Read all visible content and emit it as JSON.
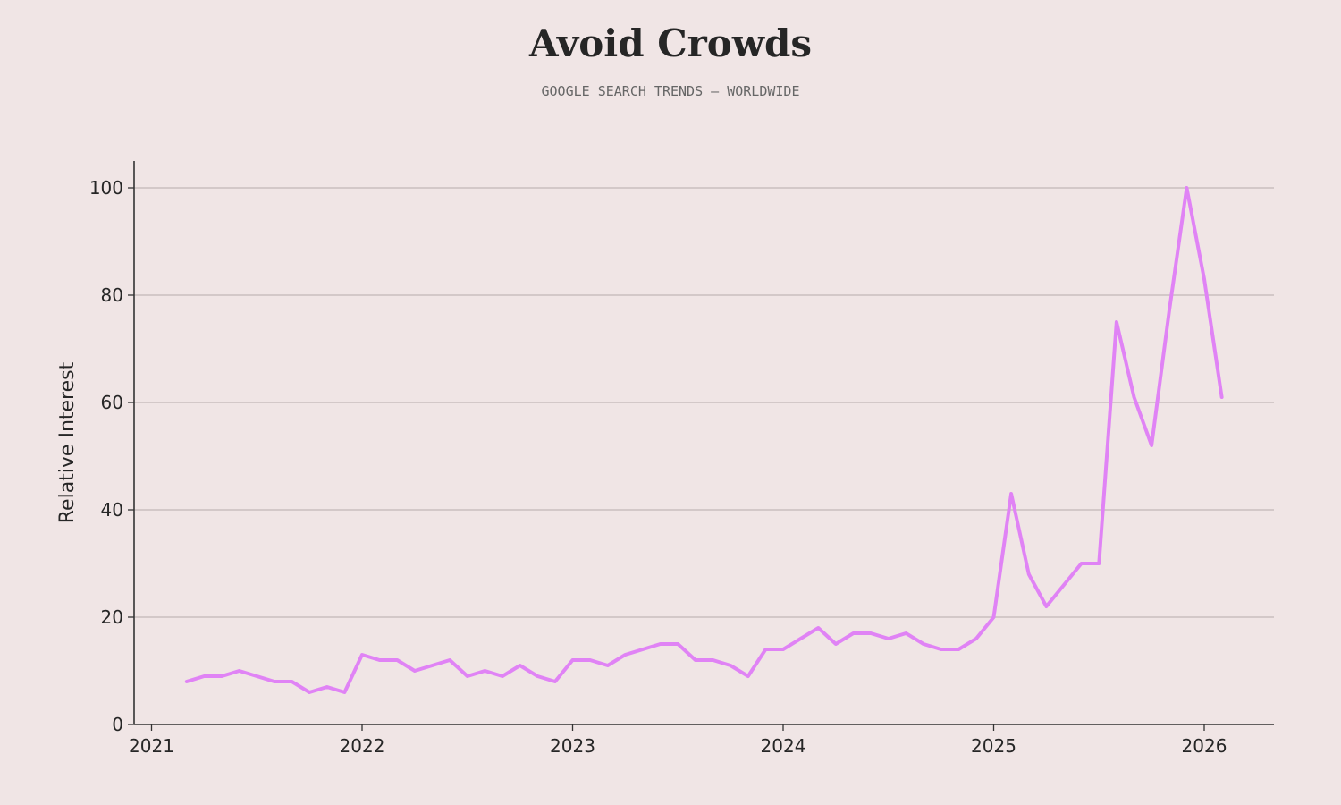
{
  "chart_data": {
    "type": "line",
    "title": "Avoid Crowds",
    "subtitle": "GOOGLE SEARCH TRENDS — WORLDWIDE",
    "xlabel": "",
    "ylabel": "Relative Interest",
    "x_ticks": [
      "2021",
      "2022",
      "2023",
      "2024",
      "2025",
      "2026"
    ],
    "y_ticks": [
      "0",
      "20",
      "40",
      "60",
      "80",
      "100"
    ],
    "xlim": [
      "2020-12-15",
      "2026-05-01"
    ],
    "ylim": [
      0,
      105
    ],
    "grid": "horizontal",
    "line_color": "#e083f5",
    "series": [
      {
        "x": [
          "2021-03",
          "2021-04",
          "2021-05",
          "2021-06",
          "2021-07",
          "2021-08",
          "2021-09",
          "2021-10",
          "2021-11",
          "2021-12",
          "2022-01",
          "2022-02",
          "2022-03",
          "2022-04",
          "2022-05",
          "2022-06",
          "2022-07",
          "2022-08",
          "2022-09",
          "2022-10",
          "2022-11",
          "2022-12",
          "2023-01",
          "2023-02",
          "2023-03",
          "2023-04",
          "2023-05",
          "2023-06",
          "2023-07",
          "2023-08",
          "2023-09",
          "2023-10",
          "2023-11",
          "2023-12",
          "2024-01",
          "2024-02",
          "2024-03",
          "2024-04",
          "2024-05",
          "2024-06",
          "2024-07",
          "2024-08",
          "2024-09",
          "2024-10",
          "2024-11",
          "2024-12",
          "2025-01",
          "2025-02",
          "2025-03",
          "2025-04",
          "2025-05",
          "2025-06",
          "2025-07",
          "2025-08",
          "2025-09",
          "2025-10",
          "2025-11",
          "2025-12",
          "2026-01",
          "2026-02"
        ],
        "values": [
          8,
          9,
          9,
          10,
          9,
          8,
          8,
          6,
          7,
          6,
          13,
          12,
          12,
          10,
          11,
          12,
          9,
          10,
          9,
          11,
          9,
          8,
          12,
          12,
          11,
          13,
          14,
          15,
          15,
          12,
          12,
          11,
          9,
          14,
          14,
          16,
          18,
          15,
          17,
          17,
          16,
          17,
          15,
          14,
          14,
          16,
          20,
          43,
          28,
          22,
          26,
          30,
          30,
          75,
          61,
          52,
          77,
          100,
          83,
          61
        ]
      }
    ]
  }
}
